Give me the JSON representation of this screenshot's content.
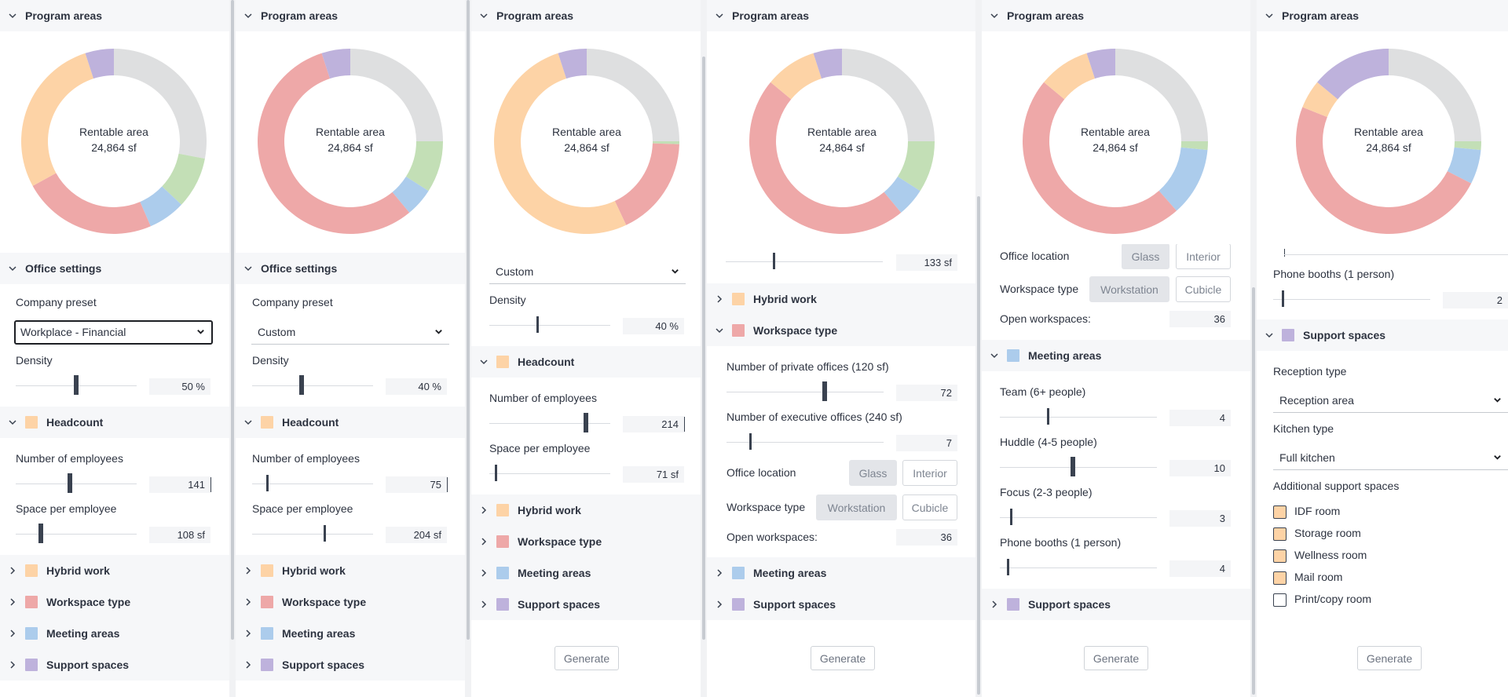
{
  "colors": {
    "headcount": "#fdd3a6",
    "workspace": "#eea8a8",
    "meeting": "#acccec",
    "support": "#beb2dc",
    "grey": "#dedfe0",
    "green": "#c3dfb6"
  },
  "icons": {
    "expanded": "chevron-down-icon",
    "collapsed": "chevron-right-icon",
    "dropdown": "dropdown-arrow-icon"
  },
  "common": {
    "program_areas": "Program areas",
    "office_settings": "Office settings",
    "rentable_label": "Rentable area",
    "rentable_value": "24,864 sf",
    "company_preset": "Company preset",
    "density": "Density",
    "headcount": "Headcount",
    "num_employees": "Number of employees",
    "space_per_employee": "Space per employee",
    "hybrid_work": "Hybrid work",
    "workspace_type": "Workspace type",
    "meeting_areas": "Meeting areas",
    "support_spaces": "Support spaces",
    "generate": "Generate",
    "private_offices": "Number of private offices (120 sf)",
    "executive_offices": "Number of executive offices (240 sf)",
    "office_location": "Office location",
    "glass": "Glass",
    "interior": "Interior",
    "workspace_type_label": "Workspace type",
    "workstation": "Workstation",
    "cubicle": "Cubicle",
    "open_workspaces": "Open workspaces:",
    "team": "Team (6+ people)",
    "huddle": "Huddle (4-5 people)",
    "focus": "Focus (2-3 people)",
    "phone_booths": "Phone booths (1 person)",
    "reception_type": "Reception type",
    "kitchen_type": "Kitchen type",
    "additional_support": "Additional support spaces"
  },
  "panel1": {
    "preset": "Workplace - Financial",
    "density": "50 %",
    "density_level": 0.5,
    "employees": "141",
    "space_per_employee": "108 sf",
    "chart_data": {
      "type": "pie",
      "title": "",
      "slices": [
        {
          "name": "Grey",
          "value": 0.28,
          "color": "#dedfe0"
        },
        {
          "name": "Green",
          "value": 0.09,
          "color": "#c3dfb6"
        },
        {
          "name": "Meeting areas",
          "value": 0.065,
          "color": "#acccec"
        },
        {
          "name": "Workspace type",
          "value": 0.235,
          "color": "#eea8a8"
        },
        {
          "name": "Headcount",
          "value": 0.28,
          "color": "#fdd3a6"
        },
        {
          "name": "Support spaces",
          "value": 0.05,
          "color": "#beb2dc"
        }
      ]
    }
  },
  "panel2": {
    "preset": "Custom",
    "density": "40 %",
    "density_level": 0.4,
    "employees": "75",
    "space_per_employee": "204 sf",
    "chart_data": {
      "type": "pie",
      "title": "",
      "slices": [
        {
          "name": "Grey",
          "value": 0.25,
          "color": "#dedfe0"
        },
        {
          "name": "Green",
          "value": 0.09,
          "color": "#c3dfb6"
        },
        {
          "name": "Meeting areas",
          "value": 0.05,
          "color": "#acccec"
        },
        {
          "name": "Workspace type",
          "value": 0.56,
          "color": "#eea8a8"
        },
        {
          "name": "Support spaces",
          "value": 0.05,
          "color": "#beb2dc"
        }
      ]
    }
  },
  "panel3": {
    "preset": "Custom",
    "density": "40 %",
    "employees": "214",
    "space_per_employee": "71 sf",
    "chart_data": {
      "type": "pie",
      "title": "",
      "slices": [
        {
          "name": "Grey",
          "value": 0.25,
          "color": "#dedfe0"
        },
        {
          "name": "Green",
          "value": 0.005,
          "color": "#c3dfb6"
        },
        {
          "name": "Workspace type",
          "value": 0.175,
          "color": "#eea8a8"
        },
        {
          "name": "Headcount",
          "value": 0.52,
          "color": "#fdd3a6"
        },
        {
          "name": "Support spaces",
          "value": 0.05,
          "color": "#beb2dc"
        }
      ]
    }
  },
  "panel4": {
    "partial_value": "133 sf",
    "private_offices": "72",
    "executive_offices": "7",
    "open_workspaces": "36",
    "chart_data": {
      "type": "pie",
      "title": "",
      "slices": [
        {
          "name": "Grey",
          "value": 0.25,
          "color": "#dedfe0"
        },
        {
          "name": "Green",
          "value": 0.09,
          "color": "#c3dfb6"
        },
        {
          "name": "Meeting areas",
          "value": 0.05,
          "color": "#acccec"
        },
        {
          "name": "Workspace type",
          "value": 0.47,
          "color": "#eea8a8"
        },
        {
          "name": "Headcount",
          "value": 0.09,
          "color": "#fdd3a6"
        },
        {
          "name": "Support spaces",
          "value": 0.05,
          "color": "#beb2dc"
        }
      ]
    }
  },
  "panel5": {
    "partial_location": "Office location",
    "open_workspaces": "36",
    "team": "4",
    "huddle": "10",
    "focus": "3",
    "phone_booths": "4",
    "chart_data": {
      "type": "pie",
      "title": "",
      "slices": [
        {
          "name": "Grey",
          "value": 0.25,
          "color": "#dedfe0"
        },
        {
          "name": "Green",
          "value": 0.015,
          "color": "#c3dfb6"
        },
        {
          "name": "Meeting areas",
          "value": 0.12,
          "color": "#acccec"
        },
        {
          "name": "Workspace type",
          "value": 0.475,
          "color": "#eea8a8"
        },
        {
          "name": "Headcount",
          "value": 0.09,
          "color": "#fdd3a6"
        },
        {
          "name": "Support spaces",
          "value": 0.05,
          "color": "#beb2dc"
        }
      ]
    }
  },
  "panel6": {
    "phone_booths": "2",
    "reception": "Reception area",
    "kitchen": "Full kitchen",
    "checkboxes": [
      {
        "label": "IDF room",
        "checked": true
      },
      {
        "label": "Storage room",
        "checked": true
      },
      {
        "label": "Wellness room",
        "checked": true
      },
      {
        "label": "Mail room",
        "checked": true
      },
      {
        "label": "Print/copy room",
        "checked": false
      }
    ],
    "chart_data": {
      "type": "pie",
      "title": "",
      "slices": [
        {
          "name": "Grey",
          "value": 0.25,
          "color": "#dedfe0"
        },
        {
          "name": "Green",
          "value": 0.015,
          "color": "#c3dfb6"
        },
        {
          "name": "Meeting areas",
          "value": 0.06,
          "color": "#acccec"
        },
        {
          "name": "Workspace type",
          "value": 0.485,
          "color": "#eea8a8"
        },
        {
          "name": "Headcount",
          "value": 0.05,
          "color": "#fdd3a6"
        },
        {
          "name": "Support spaces",
          "value": 0.14,
          "color": "#beb2dc"
        }
      ]
    }
  }
}
